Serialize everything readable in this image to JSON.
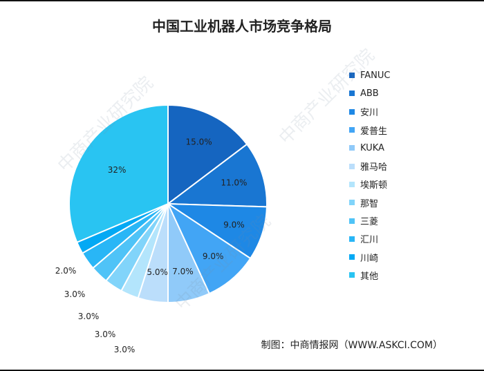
{
  "title": "中国工业机器人市场竞争格局",
  "source": "制图：中商情报网（WWW.ASKCI.COM）",
  "watermark_text": "中商产业研究院",
  "chart_data": {
    "type": "pie",
    "title": "中国工业机器人市场竞争格局",
    "legend_position": "right",
    "slices": [
      {
        "name": "FANUC",
        "value": 15.0,
        "label": "15.0%",
        "color": "#1565C0"
      },
      {
        "name": "ABB",
        "value": 11.0,
        "label": "11.0%",
        "color": "#1976D2"
      },
      {
        "name": "安川",
        "value": 9.0,
        "label": "9.0%",
        "color": "#1E88E5"
      },
      {
        "name": "爱普生",
        "value": 9.0,
        "label": "9.0%",
        "color": "#42A5F5"
      },
      {
        "name": "KUKA",
        "value": 7.0,
        "label": "7.0%",
        "color": "#90CAF9"
      },
      {
        "name": "雅马哈",
        "value": 5.0,
        "label": "5.0%",
        "color": "#BBDEFB"
      },
      {
        "name": "埃斯顿",
        "value": 3.0,
        "label": "3.0%",
        "color": "#B3E5FC"
      },
      {
        "name": "那智",
        "value": 3.0,
        "label": "3.0%",
        "color": "#81D4FA"
      },
      {
        "name": "三菱",
        "value": 3.0,
        "label": "3.0%",
        "color": "#4FC3F7"
      },
      {
        "name": "汇川",
        "value": 3.0,
        "label": "3.0%",
        "color": "#29B6F6"
      },
      {
        "name": "川崎",
        "value": 2.0,
        "label": "2.0%",
        "color": "#03A9F4"
      },
      {
        "name": "其他",
        "value": 32.0,
        "label": "32%",
        "color": "#29C4F2"
      }
    ]
  }
}
